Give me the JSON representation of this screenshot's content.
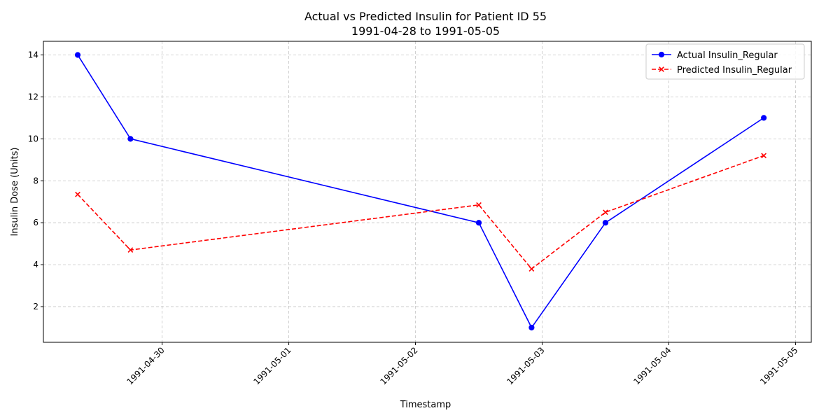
{
  "chart_data": {
    "type": "line",
    "title": "Actual vs Predicted Insulin for Patient ID 55",
    "subtitle": "1991-04-28 to 1991-05-05",
    "xlabel": "Timestamp",
    "ylabel": "Insulin Dose (Units)",
    "x_tick_labels": [
      "1991-04-30",
      "1991-05-01",
      "1991-05-02",
      "1991-05-03",
      "1991-05-04",
      "1991-05-05"
    ],
    "y_tick_labels": [
      "2",
      "4",
      "6",
      "8",
      "10",
      "12",
      "14"
    ],
    "xlim": [
      "1991-04-29 01:30",
      "1991-05-05 03:00"
    ],
    "ylim": [
      0.3,
      14.65
    ],
    "grid": true,
    "legend_position": "top-right",
    "x": [
      "1991-04-29 08:00",
      "1991-04-29 18:00",
      "1991-05-02 12:00",
      "1991-05-02 22:00",
      "1991-05-03 12:00",
      "1991-05-04 18:00"
    ],
    "series": [
      {
        "name": "Actual Insulin_Regular",
        "color": "#0000ff",
        "marker": "circle",
        "linestyle": "solid",
        "values": [
          14,
          10,
          6,
          1,
          6,
          11
        ]
      },
      {
        "name": "Predicted Insulin_Regular",
        "color": "#ff0000",
        "marker": "x",
        "linestyle": "dashed",
        "values": [
          7.35,
          4.7,
          6.85,
          3.8,
          6.5,
          9.2
        ]
      }
    ]
  }
}
